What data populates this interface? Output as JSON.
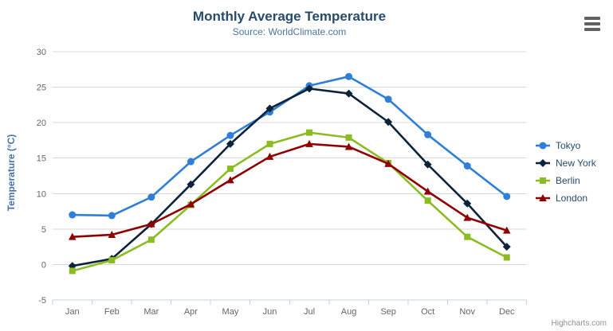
{
  "credits": "Highcharts.com",
  "menu": {
    "icon": "hamburger-icon"
  },
  "chart_data": {
    "type": "line",
    "title": "Monthly Average Temperature",
    "subtitle": "Source: WorldClimate.com",
    "xlabel": "",
    "ylabel": "Temperature (°C)",
    "ylim": [
      -5,
      30
    ],
    "y_ticks": [
      -5,
      0,
      5,
      10,
      15,
      20,
      25,
      30
    ],
    "grid": true,
    "legend_position": "right",
    "categories": [
      "Jan",
      "Feb",
      "Mar",
      "Apr",
      "May",
      "Jun",
      "Jul",
      "Aug",
      "Sep",
      "Oct",
      "Nov",
      "Dec"
    ],
    "series": [
      {
        "name": "Tokyo",
        "color": "#2f7ed8",
        "marker": "circle",
        "values": [
          7.0,
          6.9,
          9.5,
          14.5,
          18.2,
          21.5,
          25.2,
          26.5,
          23.3,
          18.3,
          13.9,
          9.6
        ]
      },
      {
        "name": "New York",
        "color": "#0d233a",
        "marker": "diamond",
        "values": [
          -0.2,
          0.8,
          5.7,
          11.3,
          17.0,
          22.0,
          24.8,
          24.1,
          20.1,
          14.1,
          8.6,
          2.5
        ]
      },
      {
        "name": "Berlin",
        "color": "#8bbc21",
        "marker": "square",
        "values": [
          -0.9,
          0.6,
          3.5,
          8.4,
          13.5,
          17.0,
          18.6,
          17.9,
          14.3,
          9.0,
          3.9,
          1.0
        ]
      },
      {
        "name": "London",
        "color": "#910000",
        "marker": "triangle",
        "values": [
          3.9,
          4.2,
          5.7,
          8.5,
          11.9,
          15.2,
          17.0,
          16.6,
          14.2,
          10.3,
          6.6,
          4.8
        ]
      }
    ],
    "axis_colors": {
      "gridline": "#d8d8d8",
      "axis_line": "#c0d0e0",
      "labels": "#666666"
    }
  }
}
